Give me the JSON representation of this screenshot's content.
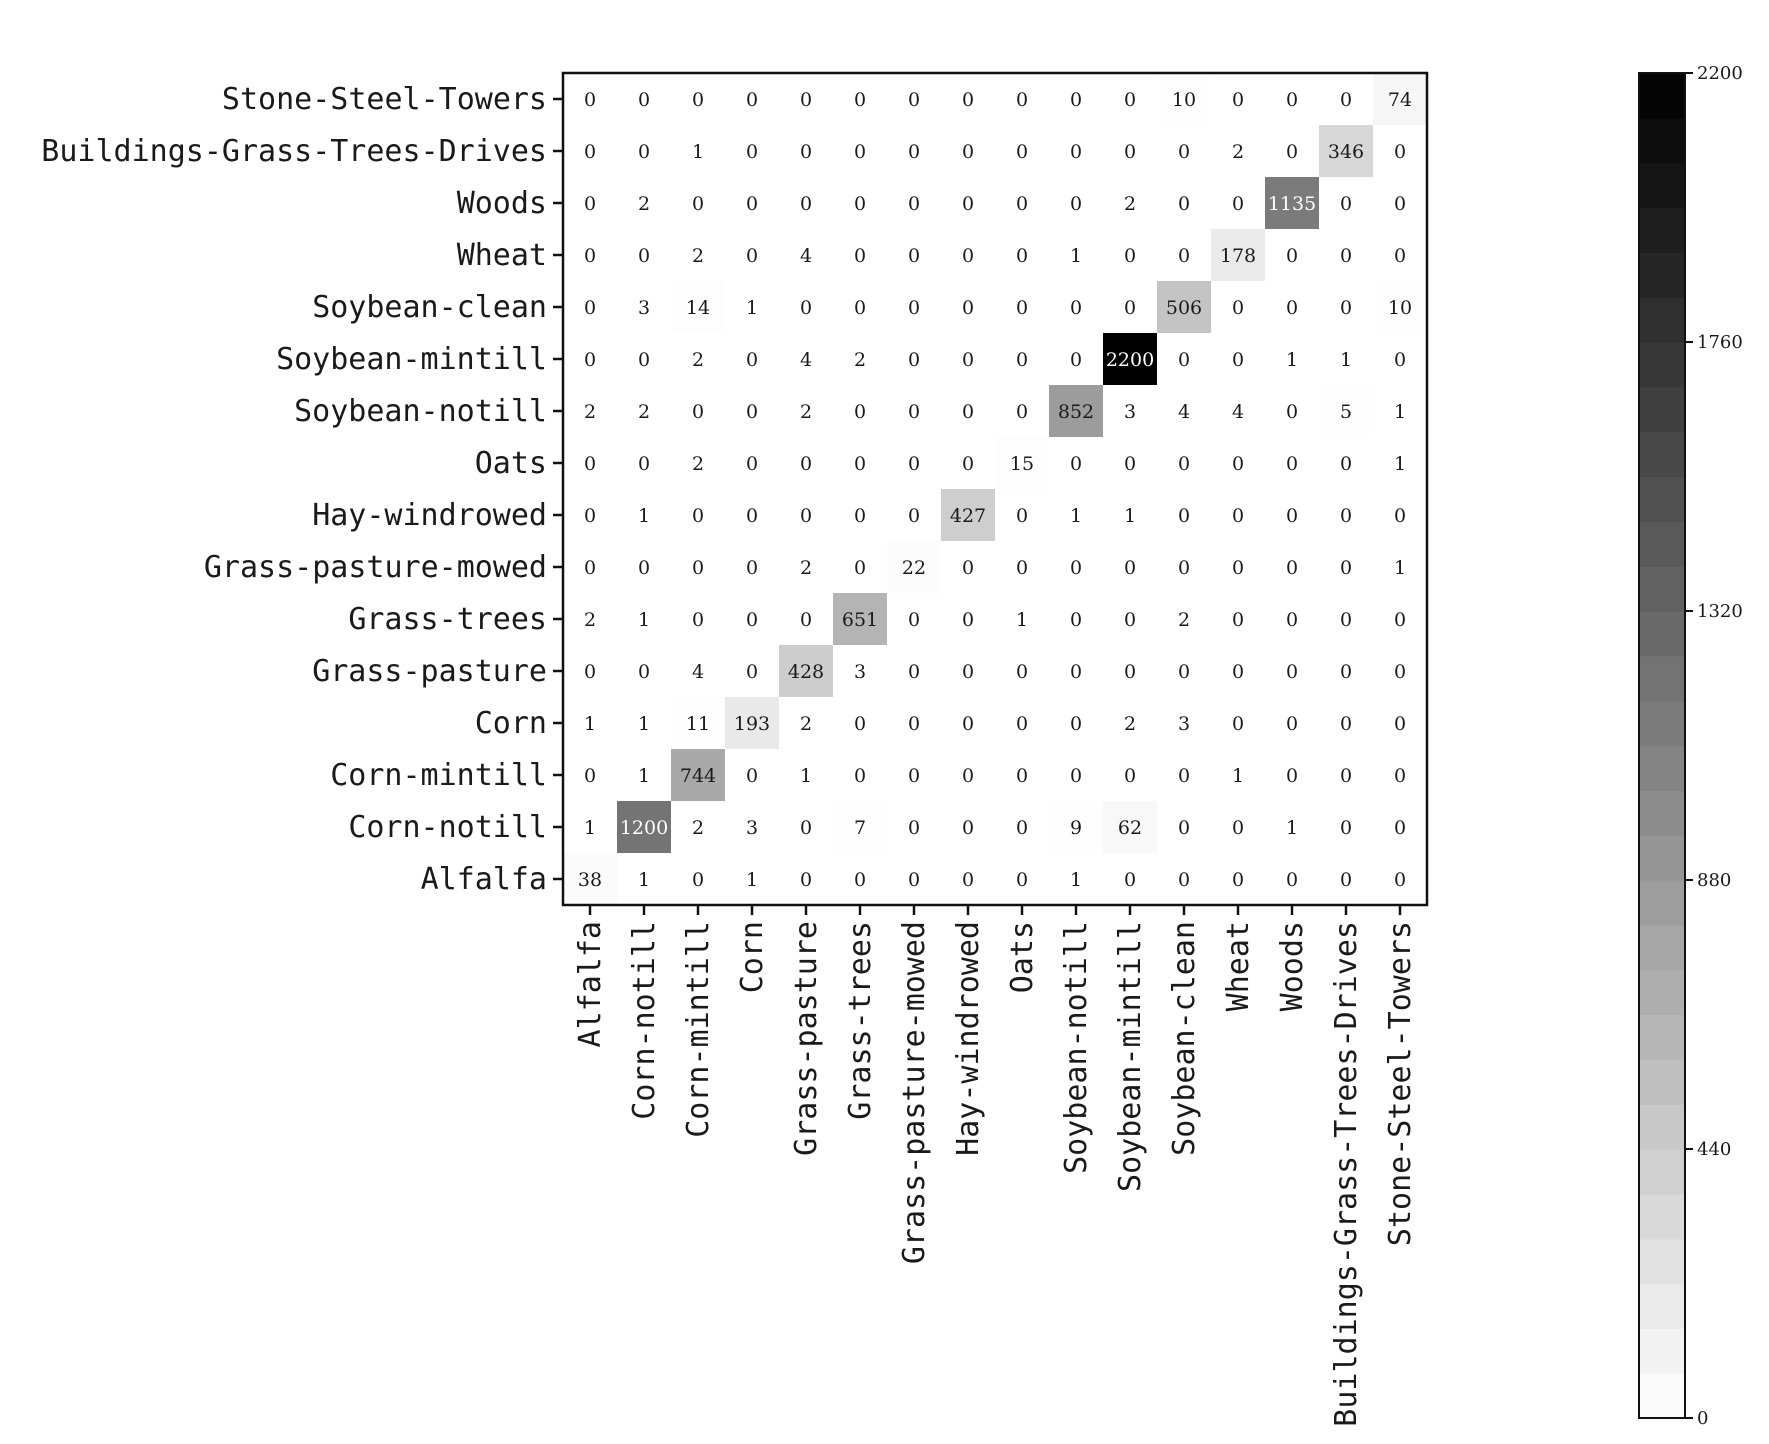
{
  "chart_data": {
    "type": "heatmap",
    "title": "",
    "xlabel": "",
    "ylabel": "",
    "colormap": "greys",
    "color_range": [
      0,
      2200
    ],
    "colorbar_ticks": [
      0,
      440,
      880,
      1320,
      1760,
      2200
    ],
    "colorbar_placement": "right",
    "classes": [
      "Alfalfa",
      "Corn-notill",
      "Corn-mintill",
      "Corn",
      "Grass-pasture",
      "Grass-trees",
      "Grass-pasture-mowed",
      "Hay-windrowed",
      "Oats",
      "Soybean-notill",
      "Soybean-mintill",
      "Soybean-clean",
      "Wheat",
      "Woods",
      "Buildings-Grass-Trees-Drives",
      "Stone-Steel-Towers"
    ],
    "matrix": [
      [
        38,
        1,
        0,
        1,
        0,
        0,
        0,
        0,
        0,
        1,
        0,
        0,
        0,
        0,
        0,
        0
      ],
      [
        1,
        1200,
        2,
        3,
        0,
        7,
        0,
        0,
        0,
        9,
        62,
        0,
        0,
        1,
        0,
        0
      ],
      [
        0,
        1,
        744,
        0,
        1,
        0,
        0,
        0,
        0,
        0,
        0,
        0,
        1,
        0,
        0,
        0
      ],
      [
        1,
        1,
        11,
        193,
        2,
        0,
        0,
        0,
        0,
        0,
        2,
        3,
        0,
        0,
        0,
        0
      ],
      [
        0,
        0,
        4,
        0,
        428,
        3,
        0,
        0,
        0,
        0,
        0,
        0,
        0,
        0,
        0,
        0
      ],
      [
        2,
        1,
        0,
        0,
        0,
        651,
        0,
        0,
        1,
        0,
        0,
        2,
        0,
        0,
        0,
        0
      ],
      [
        0,
        0,
        0,
        0,
        2,
        0,
        22,
        0,
        0,
        0,
        0,
        0,
        0,
        0,
        0,
        1
      ],
      [
        0,
        1,
        0,
        0,
        0,
        0,
        0,
        427,
        0,
        1,
        1,
        0,
        0,
        0,
        0,
        0
      ],
      [
        0,
        0,
        2,
        0,
        0,
        0,
        0,
        0,
        15,
        0,
        0,
        0,
        0,
        0,
        0,
        1
      ],
      [
        2,
        2,
        0,
        0,
        2,
        0,
        0,
        0,
        0,
        852,
        3,
        4,
        4,
        0,
        5,
        1
      ],
      [
        0,
        0,
        2,
        0,
        4,
        2,
        0,
        0,
        0,
        0,
        2200,
        0,
        0,
        1,
        1,
        0
      ],
      [
        0,
        3,
        14,
        1,
        0,
        0,
        0,
        0,
        0,
        0,
        0,
        506,
        0,
        0,
        0,
        10
      ],
      [
        0,
        0,
        2,
        0,
        4,
        0,
        0,
        0,
        0,
        1,
        0,
        0,
        178,
        0,
        0,
        0
      ],
      [
        0,
        2,
        0,
        0,
        0,
        0,
        0,
        0,
        0,
        0,
        2,
        0,
        0,
        1135,
        0,
        0
      ],
      [
        0,
        0,
        1,
        0,
        0,
        0,
        0,
        0,
        0,
        0,
        0,
        0,
        2,
        0,
        346,
        0
      ],
      [
        0,
        0,
        0,
        0,
        0,
        0,
        0,
        0,
        0,
        0,
        0,
        10,
        0,
        0,
        0,
        74
      ]
    ]
  }
}
